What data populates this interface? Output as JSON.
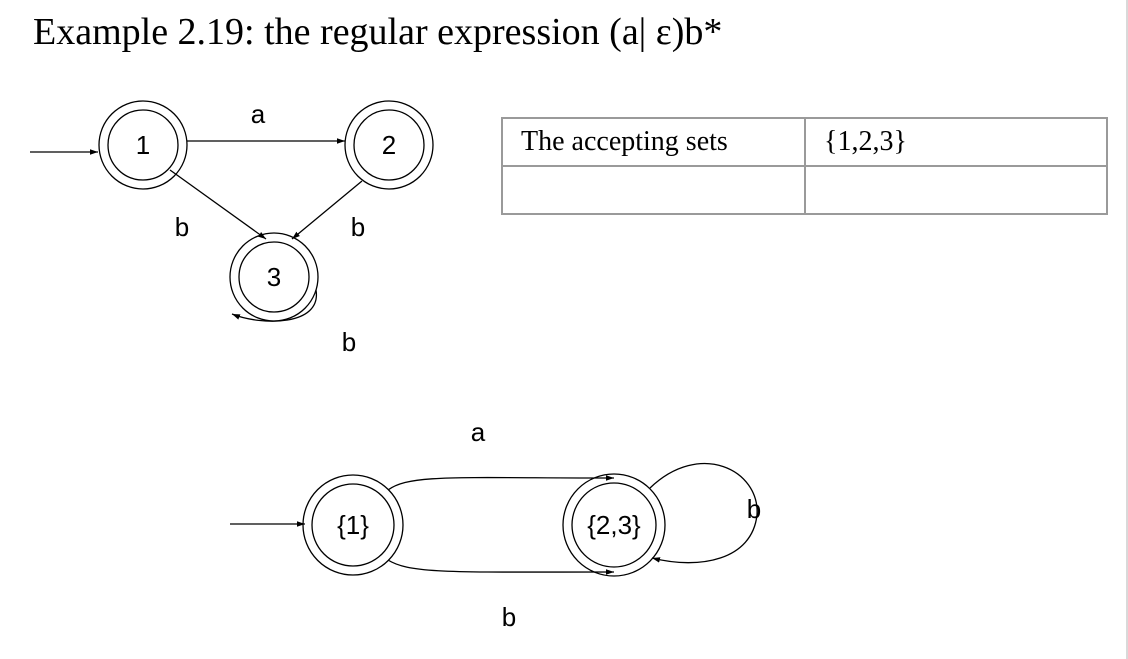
{
  "title": "Example 2.19:  the regular expression (a| ε)b*",
  "nfa": {
    "states": [
      "1",
      "2",
      "3"
    ],
    "edge_labels": {
      "one_to_two": "a",
      "one_to_three": "b",
      "two_to_three": "b",
      "three_loop": "b"
    }
  },
  "dfa": {
    "states": [
      "{1}",
      "{2,3}"
    ],
    "edge_labels": {
      "top": "a",
      "bottom": "b",
      "loop": "b"
    }
  },
  "table": {
    "rows": [
      [
        "The accepting sets",
        "{1,2,3}"
      ],
      [
        "",
        ""
      ]
    ]
  }
}
